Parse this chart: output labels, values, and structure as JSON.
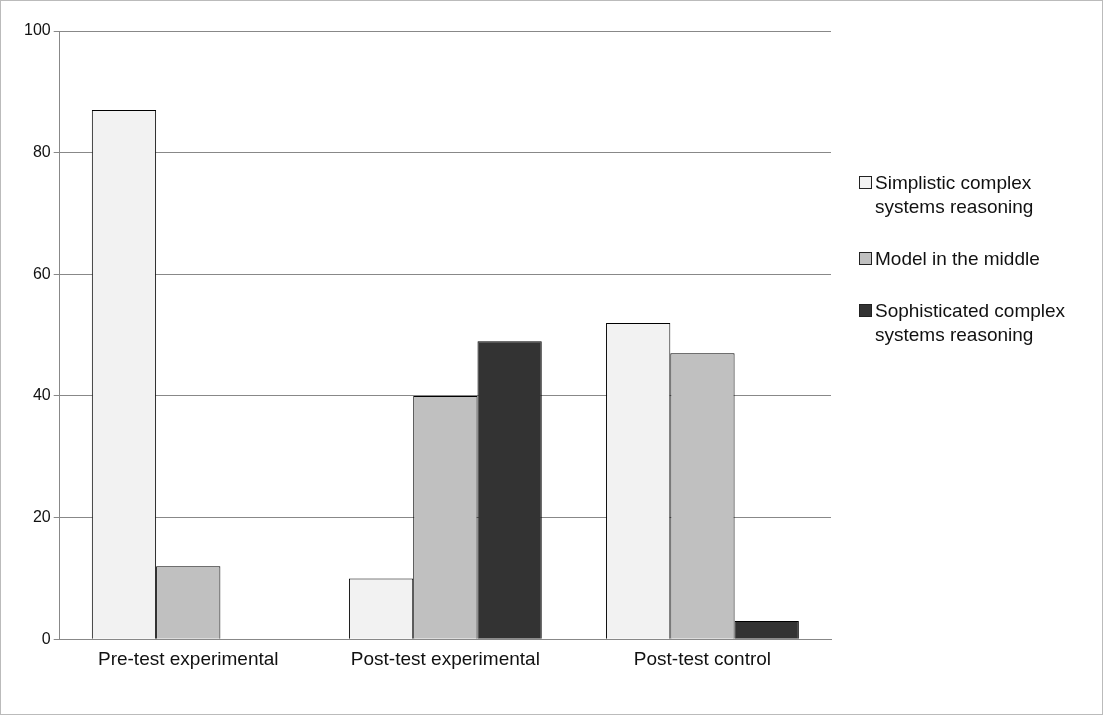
{
  "chart_data": {
    "type": "bar",
    "categories": [
      "Pre-test experimental",
      "Post-test experimental",
      "Post-test control"
    ],
    "series": [
      {
        "name": "Simplistic complex systems reasoning",
        "color": "#f2f2f2",
        "values": [
          87,
          10,
          52
        ]
      },
      {
        "name": "Model in the middle",
        "color": "#c0c0c0",
        "values": [
          12,
          40,
          47
        ]
      },
      {
        "name": "Sophisticated complex systems reasoning",
        "color": "#333333",
        "values": [
          0,
          49,
          3
        ]
      }
    ],
    "ylim": [
      0,
      100
    ],
    "yticks": [
      0,
      20,
      40,
      60,
      80,
      100
    ],
    "grid": "y",
    "legend": "right"
  }
}
